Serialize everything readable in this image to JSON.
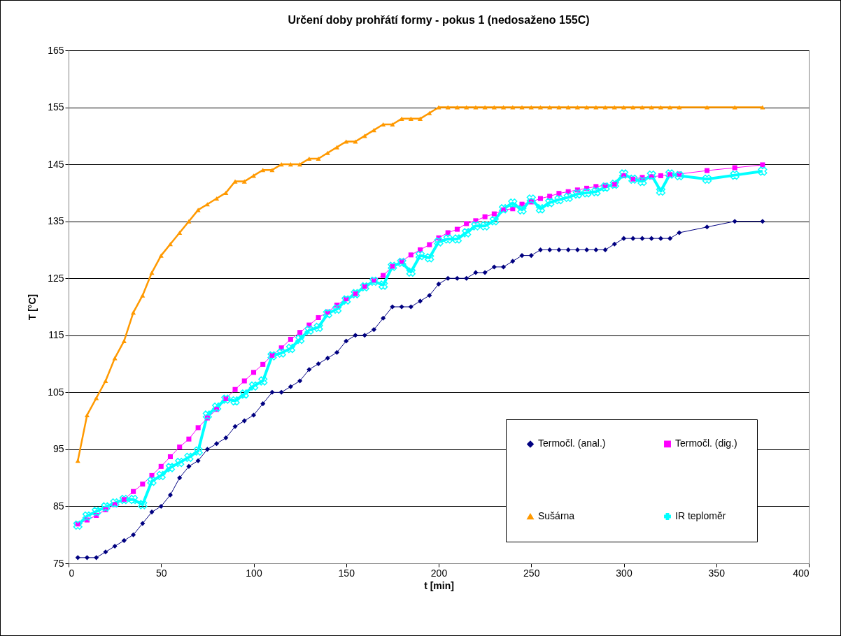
{
  "chart_data": {
    "type": "line",
    "title": "Určení doby prohřátí formy - pokus 1 (nedosaženo 155C)",
    "xlabel": "t [min]",
    "ylabel": "T [°C]",
    "x": [
      5,
      10,
      15,
      20,
      25,
      30,
      35,
      40,
      45,
      50,
      55,
      60,
      65,
      70,
      75,
      80,
      85,
      90,
      95,
      100,
      105,
      110,
      115,
      120,
      125,
      130,
      135,
      140,
      145,
      150,
      155,
      160,
      165,
      170,
      175,
      180,
      185,
      190,
      195,
      200,
      205,
      210,
      215,
      220,
      225,
      230,
      235,
      240,
      245,
      250,
      255,
      260,
      265,
      270,
      275,
      280,
      285,
      290,
      295,
      300,
      305,
      310,
      315,
      320,
      325,
      330,
      345,
      360,
      375
    ],
    "series": [
      {
        "name": "Termočl. (anal.)",
        "color": "#000080",
        "marker": "diamond",
        "values": [
          76,
          76,
          76,
          77,
          78,
          79,
          80,
          82,
          84,
          85,
          87,
          90,
          92,
          93,
          95,
          96,
          97,
          99,
          100,
          101,
          103,
          105,
          105,
          106,
          107,
          109,
          110,
          111,
          112,
          114,
          115,
          115,
          116,
          118,
          120,
          120,
          120,
          121,
          122,
          124,
          125,
          125,
          125,
          126,
          126,
          127,
          127,
          128,
          129,
          129,
          130,
          130,
          130,
          130,
          130,
          130,
          130,
          130,
          131,
          132,
          132,
          132,
          132,
          132,
          132,
          133,
          134,
          135,
          135
        ]
      },
      {
        "name": "Termočl. (dig.)",
        "color": "#ff00ff",
        "marker": "square",
        "values": [
          81.9,
          82.6,
          83.4,
          84.4,
          85.3,
          86.2,
          87.6,
          88.9,
          90.4,
          92.0,
          93.7,
          95.4,
          96.8,
          98.8,
          100.5,
          102.0,
          103.9,
          105.5,
          107.0,
          108.5,
          109.9,
          111.5,
          112.8,
          114.3,
          115.5,
          116.8,
          118.1,
          119.1,
          120.3,
          121.4,
          122.3,
          123.6,
          124.7,
          125.5,
          127.1,
          128.0,
          129.1,
          130.0,
          130.9,
          132.1,
          133.0,
          133.6,
          134.6,
          135.1,
          135.8,
          136.3,
          137.0,
          137.2,
          138.0,
          138.4,
          139.0,
          139.4,
          139.9,
          140.2,
          140.5,
          140.8,
          141.1,
          141.3,
          141.5,
          143.0,
          142.4,
          142.7,
          142.8,
          143.0,
          143.2,
          143.3,
          143.9,
          144.4,
          144.9
        ]
      },
      {
        "name": "Sušárna",
        "color": "#ff9900",
        "marker": "triangle",
        "values": [
          93,
          101,
          104,
          107,
          111,
          114,
          119,
          122,
          126,
          129,
          131,
          133,
          135,
          137,
          138,
          139,
          140,
          142,
          142,
          143,
          144,
          144,
          145,
          145,
          145,
          146,
          146,
          147,
          148,
          149,
          149,
          150,
          151,
          152,
          152,
          153,
          153,
          153,
          154,
          155,
          155,
          155,
          155,
          155,
          155,
          155,
          155,
          155,
          155,
          155,
          155,
          155,
          155,
          155,
          155,
          155,
          155,
          155,
          155,
          155,
          155,
          155,
          155,
          155,
          155,
          155,
          155,
          155,
          155
        ]
      },
      {
        "name": "IR teploměr",
        "color": "#00ffff",
        "marker": "cross",
        "values": [
          81.7,
          83.3,
          84.1,
          84.9,
          85.6,
          86.2,
          86.2,
          85.3,
          89.4,
          90.4,
          91.8,
          92.7,
          93.6,
          94.7,
          101.0,
          102.4,
          103.8,
          103.5,
          104.7,
          106.1,
          107.0,
          111.4,
          111.9,
          112.7,
          114.3,
          115.9,
          116.4,
          118.8,
          119.6,
          121.2,
          122.3,
          123.5,
          124.5,
          123.8,
          127.1,
          127.8,
          126.1,
          129.0,
          128.6,
          131.4,
          131.9,
          131.9,
          133.0,
          134.2,
          134.2,
          135.1,
          137.2,
          138.2,
          137.0,
          138.9,
          137.2,
          138.3,
          138.8,
          139.2,
          139.8,
          140.0,
          140.2,
          141.0,
          141.5,
          143.3,
          142.4,
          142.0,
          143.1,
          140.3,
          143.3,
          143.0,
          142.4,
          143.1,
          143.8
        ]
      }
    ],
    "xlim": [
      0,
      400
    ],
    "xticks": [
      0,
      50,
      100,
      150,
      200,
      250,
      300,
      350,
      400
    ],
    "ylim": [
      75,
      165
    ],
    "yticks": [
      75,
      85,
      95,
      105,
      115,
      125,
      135,
      145,
      155,
      165
    ],
    "grid": "y",
    "legend": "bottom right"
  }
}
